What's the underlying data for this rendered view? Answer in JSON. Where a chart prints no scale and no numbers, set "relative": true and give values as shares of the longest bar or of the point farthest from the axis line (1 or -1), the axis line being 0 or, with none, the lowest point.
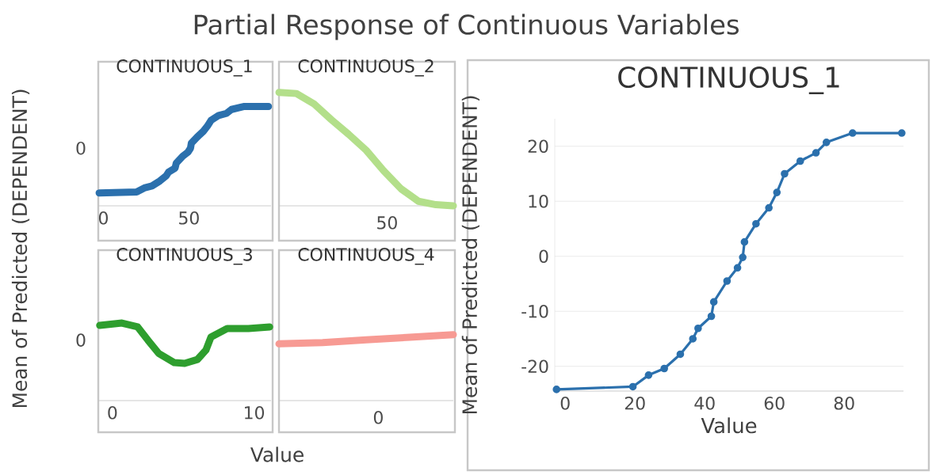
{
  "chart_data": [
    {
      "type": "other",
      "title": "Partial Response of Continuous Variables",
      "xlabel": "Value",
      "ylabel": "Mean of Predicted (DEPENDENT)"
    },
    {
      "type": "line",
      "title": "CONTINUOUS_1",
      "relative": true,
      "color": "#2b70ad",
      "xlim": [
        -3,
        98
      ],
      "xticks": [
        0,
        50
      ],
      "annotations": [
        "0"
      ],
      "x": [
        -2.5,
        19.4,
        23.9,
        28.4,
        33,
        36.6,
        38.1,
        41.9,
        42.6,
        46.4,
        49.4,
        50.9,
        51.4,
        54.7,
        58.4,
        60.7,
        62.9,
        67.4,
        71.9,
        74.9,
        82.4,
        96.5
      ],
      "values": [
        0.13,
        0.14,
        0.18,
        0.2,
        0.25,
        0.3,
        0.34,
        0.38,
        0.43,
        0.5,
        0.54,
        0.58,
        0.63,
        0.69,
        0.75,
        0.8,
        0.86,
        0.91,
        0.93,
        0.97,
        1,
        1
      ]
    },
    {
      "type": "line",
      "title": "CONTINUOUS_2",
      "relative": true,
      "color": "#b3df8a",
      "annotations": [
        "50"
      ],
      "categories": [
        null,
        null,
        null,
        null,
        null,
        null,
        null,
        null,
        null,
        null,
        null
      ],
      "values": [
        1,
        0.99,
        0.9,
        0.76,
        0.63,
        0.49,
        0.31,
        0.15,
        0.04,
        0.01,
        0
      ]
    },
    {
      "type": "line",
      "title": "CONTINUOUS_3",
      "relative": true,
      "color": "#2e9e2e",
      "xlim": [
        -1,
        11.2
      ],
      "xticks": [
        0,
        10
      ],
      "annotations": [
        "0"
      ],
      "x": [
        -0.9,
        0.67,
        1.78,
        2.5,
        3.26,
        4.37,
        5.1,
        6,
        6.6,
        6.96,
        8.1,
        9.6,
        11.1
      ],
      "values": [
        0.97,
        1,
        0.95,
        0.78,
        0.61,
        0.49,
        0.48,
        0.53,
        0.65,
        0.82,
        0.93,
        0.93,
        0.95
      ]
    },
    {
      "type": "line",
      "title": "CONTINUOUS_4",
      "relative": true,
      "color": "#f79a93",
      "annotations": [
        "0"
      ],
      "categories": [
        null,
        null,
        null,
        null,
        null
      ],
      "values": [
        0.86,
        0.88,
        0.92,
        0.96,
        1
      ]
    },
    {
      "type": "line",
      "title": "CONTINUOUS_1",
      "xlabel": "Value",
      "ylabel": "Mean of Predicted (DEPENDENT)",
      "color": "#2b70ad",
      "marker": "circle",
      "grid": "y",
      "xlim": [
        -3,
        97
      ],
      "ylim": [
        -24.5,
        25
      ],
      "xticks": [
        0,
        20,
        40,
        60,
        80
      ],
      "yticks": [
        -20,
        -10,
        0,
        10,
        20
      ],
      "x": [
        -2.5,
        19.4,
        23.9,
        28.4,
        33,
        36.6,
        38.1,
        41.9,
        42.6,
        46.4,
        49.4,
        50.9,
        51.4,
        54.7,
        58.4,
        60.7,
        62.9,
        67.4,
        71.9,
        74.9,
        82.4,
        96.5
      ],
      "values": [
        -24.2,
        -23.7,
        -21.6,
        -20.4,
        -17.8,
        -15,
        -13.1,
        -10.9,
        -8.3,
        -4.5,
        -2.1,
        -0.2,
        2.6,
        5.9,
        8.8,
        11.6,
        15,
        17.3,
        18.8,
        20.7,
        22.4,
        22.4
      ]
    }
  ]
}
